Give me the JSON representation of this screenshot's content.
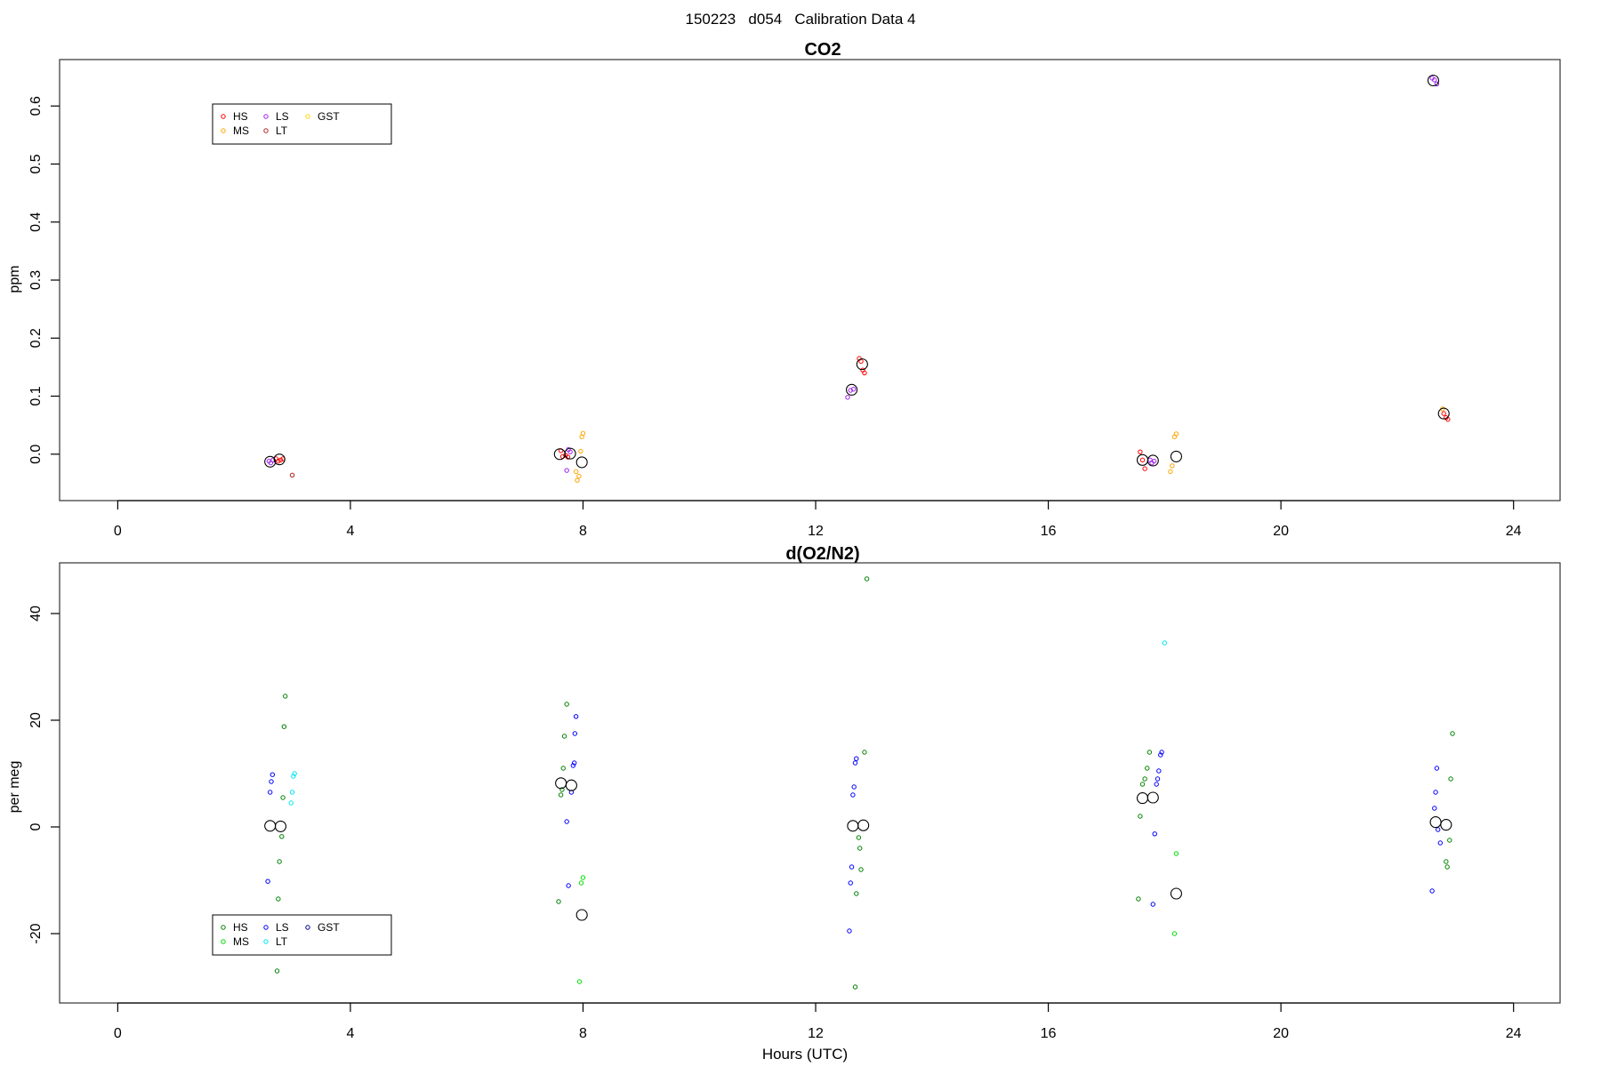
{
  "figure_title": "150223   d054   Calibration Data 4",
  "colors": {
    "HS_co2": "#ff0000",
    "MS_co2": "#ffa500",
    "LS_co2": "#a020f0",
    "LT_co2": "#b22222",
    "GST_co2": "#ffd700",
    "HS_o2": "#008000",
    "MS_o2": "#00dd00",
    "LS_o2": "#0000ff",
    "LT_o2": "#00e5ee",
    "GST_o2": "#00008b",
    "mean_marker": "#000000"
  },
  "chart_data": [
    {
      "type": "scatter",
      "title": "CO2",
      "xlabel": "",
      "ylabel": "ppm",
      "xlim": [
        -1,
        24.8
      ],
      "ylim": [
        -0.08,
        0.68
      ],
      "xticks": [
        0,
        4,
        8,
        12,
        16,
        20,
        24
      ],
      "yticks": [
        0.0,
        0.1,
        0.2,
        0.3,
        0.4,
        0.5,
        0.6
      ],
      "ytick_labels": [
        "0.0",
        "0.1",
        "0.2",
        "0.3",
        "0.4",
        "0.5",
        "0.6"
      ],
      "grid": false,
      "legend_position": "top-left",
      "legend": [
        {
          "label": "HS",
          "color": "#ff0000"
        },
        {
          "label": "MS",
          "color": "#ffa500"
        },
        {
          "label": "LS",
          "color": "#a020f0"
        },
        {
          "label": "LT",
          "color": "#b22222"
        },
        {
          "label": "GST",
          "color": "#ffd700"
        }
      ],
      "series": [
        {
          "name": "HS",
          "color": "#ff0000",
          "points": [
            [
              2.72,
              -0.008
            ],
            [
              2.76,
              -0.012
            ],
            [
              2.8,
              -0.01
            ],
            [
              2.84,
              -0.008
            ],
            [
              7.62,
              0.006
            ],
            [
              7.65,
              -0.004
            ],
            [
              7.7,
              -0.002
            ],
            [
              7.74,
              -0.005
            ],
            [
              12.75,
              0.165
            ],
            [
              12.78,
              0.16
            ],
            [
              12.81,
              0.145
            ],
            [
              12.84,
              0.14
            ],
            [
              17.58,
              0.004
            ],
            [
              17.62,
              -0.01
            ],
            [
              17.66,
              -0.025
            ],
            [
              22.8,
              0.07
            ],
            [
              22.84,
              0.063
            ],
            [
              22.87,
              0.06
            ]
          ]
        },
        {
          "name": "MS",
          "color": "#ffa500",
          "points": [
            [
              7.88,
              -0.03
            ],
            [
              7.9,
              -0.045
            ],
            [
              7.93,
              -0.038
            ],
            [
              7.96,
              0.005
            ],
            [
              7.98,
              0.03
            ],
            [
              8.0,
              0.036
            ],
            [
              18.1,
              -0.03
            ],
            [
              18.13,
              -0.02
            ],
            [
              18.17,
              0.03
            ],
            [
              18.2,
              0.035
            ],
            [
              22.78,
              0.078
            ]
          ]
        },
        {
          "name": "LS",
          "color": "#a020f0",
          "points": [
            [
              2.6,
              -0.012
            ],
            [
              2.63,
              -0.015
            ],
            [
              2.67,
              -0.01
            ],
            [
              7.75,
              0.008
            ],
            [
              7.78,
              0.004
            ],
            [
              7.72,
              -0.028
            ],
            [
              12.55,
              0.098
            ],
            [
              12.6,
              0.11
            ],
            [
              12.65,
              0.112
            ],
            [
              17.75,
              -0.01
            ],
            [
              17.78,
              -0.015
            ],
            [
              17.82,
              -0.012
            ],
            [
              22.6,
              0.648
            ],
            [
              22.64,
              0.645
            ],
            [
              22.68,
              0.638
            ]
          ]
        },
        {
          "name": "LT",
          "color": "#b22222",
          "points": [
            [
              3.0,
              -0.036
            ]
          ]
        },
        {
          "name": "GST",
          "color": "#ffd700",
          "points": []
        },
        {
          "name": "",
          "marker": "mean",
          "color": "#000000",
          "points": [
            [
              2.62,
              -0.013
            ],
            [
              2.78,
              -0.009
            ],
            [
              7.6,
              0.0
            ],
            [
              7.78,
              0.001
            ],
            [
              7.98,
              -0.014
            ],
            [
              12.62,
              0.111
            ],
            [
              12.8,
              0.155
            ],
            [
              17.62,
              -0.01
            ],
            [
              17.8,
              -0.011
            ],
            [
              18.2,
              -0.004
            ],
            [
              22.62,
              0.644
            ],
            [
              22.8,
              0.07
            ]
          ]
        }
      ]
    },
    {
      "type": "scatter",
      "title": "d(O2/N2)",
      "xlabel": "Hours (UTC)",
      "ylabel": "per meg",
      "xlim": [
        -1,
        24.8
      ],
      "ylim": [
        -33,
        49.5
      ],
      "xticks": [
        0,
        4,
        8,
        12,
        16,
        20,
        24
      ],
      "yticks": [
        -20,
        0,
        20,
        40
      ],
      "ytick_labels": [
        "-20",
        "0",
        "20",
        "40"
      ],
      "grid": false,
      "legend_position": "bottom-left",
      "legend": [
        {
          "label": "HS",
          "color": "#008000"
        },
        {
          "label": "MS",
          "color": "#00dd00"
        },
        {
          "label": "LS",
          "color": "#0000ff"
        },
        {
          "label": "LT",
          "color": "#00e5ee"
        },
        {
          "label": "GST",
          "color": "#00008b"
        }
      ],
      "series": [
        {
          "name": "HS",
          "color": "#008000",
          "points": [
            [
              2.74,
              -27
            ],
            [
              2.76,
              -13.5
            ],
            [
              2.78,
              -6.5
            ],
            [
              2.82,
              -1.8
            ],
            [
              2.84,
              5.5
            ],
            [
              2.86,
              18.8
            ],
            [
              2.88,
              24.5
            ],
            [
              7.58,
              -14
            ],
            [
              7.62,
              6
            ],
            [
              7.64,
              7
            ],
            [
              7.66,
              11
            ],
            [
              7.68,
              17
            ],
            [
              7.72,
              23
            ],
            [
              12.68,
              -30
            ],
            [
              12.7,
              -12.5
            ],
            [
              12.74,
              -2
            ],
            [
              12.76,
              -4
            ],
            [
              12.78,
              -8
            ],
            [
              12.84,
              14
            ],
            [
              12.88,
              46.5
            ],
            [
              17.55,
              -13.5
            ],
            [
              17.58,
              2
            ],
            [
              17.62,
              8
            ],
            [
              17.66,
              9
            ],
            [
              17.7,
              11
            ],
            [
              17.74,
              14
            ],
            [
              22.84,
              -6.5
            ],
            [
              22.86,
              -7.5
            ],
            [
              22.9,
              -2.5
            ],
            [
              22.92,
              9
            ],
            [
              22.95,
              17.5
            ]
          ]
        },
        {
          "name": "MS",
          "color": "#00dd00",
          "points": [
            [
              7.94,
              -29
            ],
            [
              7.97,
              -10.5
            ],
            [
              8.0,
              -9.5
            ],
            [
              18.17,
              -20
            ],
            [
              18.2,
              -5
            ]
          ]
        },
        {
          "name": "LS",
          "color": "#0000ff",
          "points": [
            [
              2.58,
              -10.2
            ],
            [
              2.62,
              6.5
            ],
            [
              2.64,
              8.5
            ],
            [
              2.66,
              9.8
            ],
            [
              7.72,
              1
            ],
            [
              7.75,
              -11
            ],
            [
              7.8,
              6.5
            ],
            [
              7.83,
              11.5
            ],
            [
              7.85,
              12
            ],
            [
              7.86,
              17.5
            ],
            [
              7.88,
              20.7
            ],
            [
              12.58,
              -19.5
            ],
            [
              12.6,
              -10.5
            ],
            [
              12.62,
              -7.5
            ],
            [
              12.64,
              6
            ],
            [
              12.66,
              7.5
            ],
            [
              12.68,
              12
            ],
            [
              12.7,
              12.8
            ],
            [
              17.8,
              -14.5
            ],
            [
              17.83,
              -1.3
            ],
            [
              17.86,
              8
            ],
            [
              17.88,
              9
            ],
            [
              17.9,
              10.5
            ],
            [
              17.93,
              13.5
            ],
            [
              17.95,
              14
            ],
            [
              22.6,
              -12
            ],
            [
              22.64,
              3.5
            ],
            [
              22.66,
              6.5
            ],
            [
              22.68,
              11
            ],
            [
              22.7,
              -0.5
            ],
            [
              22.74,
              -3
            ]
          ]
        },
        {
          "name": "LT",
          "color": "#00e5ee",
          "points": [
            [
              2.98,
              4.5
            ],
            [
              3.0,
              6.5
            ],
            [
              3.02,
              9.5
            ],
            [
              3.04,
              10
            ],
            [
              18.0,
              34.5
            ]
          ]
        },
        {
          "name": "GST",
          "color": "#00008b",
          "points": []
        },
        {
          "name": "",
          "marker": "mean",
          "color": "#000000",
          "points": [
            [
              2.62,
              0.2
            ],
            [
              2.8,
              0.1
            ],
            [
              7.62,
              8.2
            ],
            [
              7.8,
              7.8
            ],
            [
              7.98,
              -16.5
            ],
            [
              12.64,
              0.2
            ],
            [
              12.82,
              0.3
            ],
            [
              17.62,
              5.4
            ],
            [
              17.8,
              5.5
            ],
            [
              18.2,
              -12.5
            ],
            [
              22.66,
              0.9
            ],
            [
              22.84,
              0.4
            ]
          ]
        }
      ]
    }
  ]
}
